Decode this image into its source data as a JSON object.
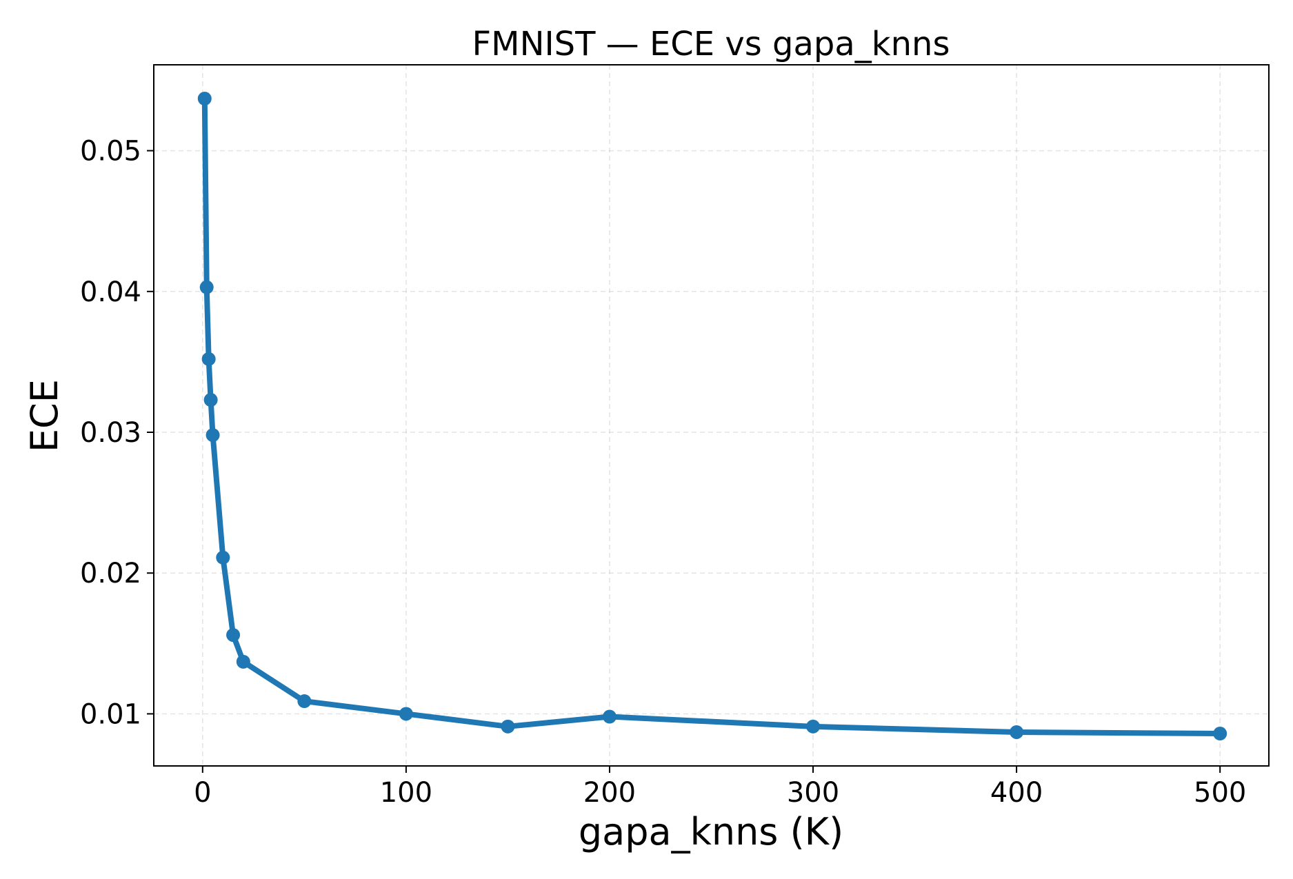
{
  "chart_data": {
    "type": "line",
    "title": "FMNIST — ECE vs gapa_knns",
    "xlabel": "gapa_knns (K)",
    "ylabel": "ECE",
    "xlim": [
      -24,
      524
    ],
    "ylim": [
      0.0063,
      0.0561
    ],
    "xticks": [
      0,
      100,
      200,
      300,
      400,
      500
    ],
    "yticks": [
      0.01,
      0.02,
      0.03,
      0.04,
      0.05
    ],
    "xtick_labels": [
      "0",
      "100",
      "200",
      "300",
      "400",
      "500"
    ],
    "ytick_labels": [
      "0.01",
      "0.02",
      "0.03",
      "0.04",
      "0.05"
    ],
    "grid": true,
    "series": [
      {
        "color": "#1f77b4",
        "marker": "circle",
        "x": [
          1,
          2,
          3,
          4,
          5,
          10,
          15,
          20,
          50,
          100,
          150,
          200,
          300,
          400,
          500
        ],
        "y": [
          0.0537,
          0.0403,
          0.0352,
          0.0323,
          0.0298,
          0.0211,
          0.0156,
          0.0137,
          0.0109,
          0.01,
          0.0091,
          0.0098,
          0.0091,
          0.0087,
          0.0086
        ]
      }
    ]
  }
}
